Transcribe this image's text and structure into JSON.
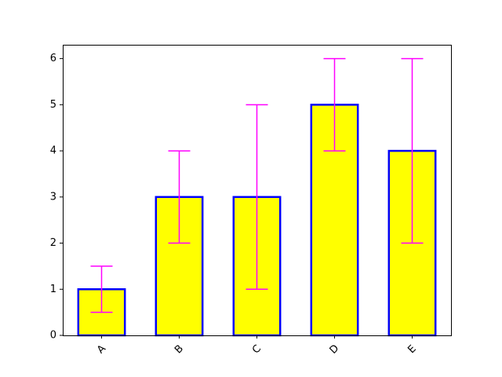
{
  "chart_data": {
    "type": "bar",
    "categories": [
      "A",
      "B",
      "C",
      "D",
      "E"
    ],
    "values": [
      1,
      3,
      3,
      5,
      4
    ],
    "error_low": [
      0.5,
      2,
      1,
      4,
      2
    ],
    "error_high": [
      1.5,
      4,
      5,
      6,
      6
    ],
    "ylim": [
      0,
      6.3
    ],
    "yticks": [
      0,
      1,
      2,
      3,
      4,
      5,
      6
    ],
    "xtick_rotation_deg": 45,
    "grid": false,
    "colors": {
      "bar_fill": "#ffff00",
      "bar_edge": "#0000ff",
      "error_bar": "#ff00ff"
    }
  }
}
